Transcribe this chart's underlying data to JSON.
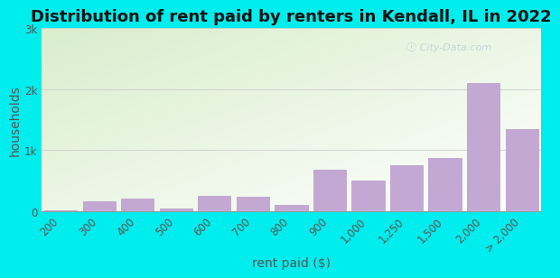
{
  "title": "Distribution of rent paid by renters in Kendall, IL in 2022",
  "xlabel": "rent paid ($)",
  "ylabel": "households",
  "bg_color": "#00EDED",
  "bar_color": "#c4a8d4",
  "bar_edge_color": "#b898c8",
  "plot_bg_top_left": "#d8eecc",
  "plot_bg_bottom_right": "#f0f8ff",
  "categories": [
    "200",
    "300",
    "400",
    "500",
    "600",
    "700",
    "800",
    "900",
    "1,000",
    "1,250",
    "1,500",
    "2,000",
    "> 2,000"
  ],
  "values": [
    20,
    155,
    210,
    45,
    250,
    230,
    100,
    680,
    500,
    750,
    870,
    2100,
    1350
  ],
  "ylim": [
    0,
    3000
  ],
  "yticks": [
    0,
    1000,
    2000,
    3000
  ],
  "ytick_labels": [
    "0",
    "1k",
    "2k",
    "3k"
  ],
  "title_fontsize": 13,
  "axis_label_fontsize": 10,
  "tick_fontsize": 8.5,
  "watermark_text": "City-Data.com",
  "watermark_color": "#b8ccd4",
  "watermark_alpha": 0.8
}
